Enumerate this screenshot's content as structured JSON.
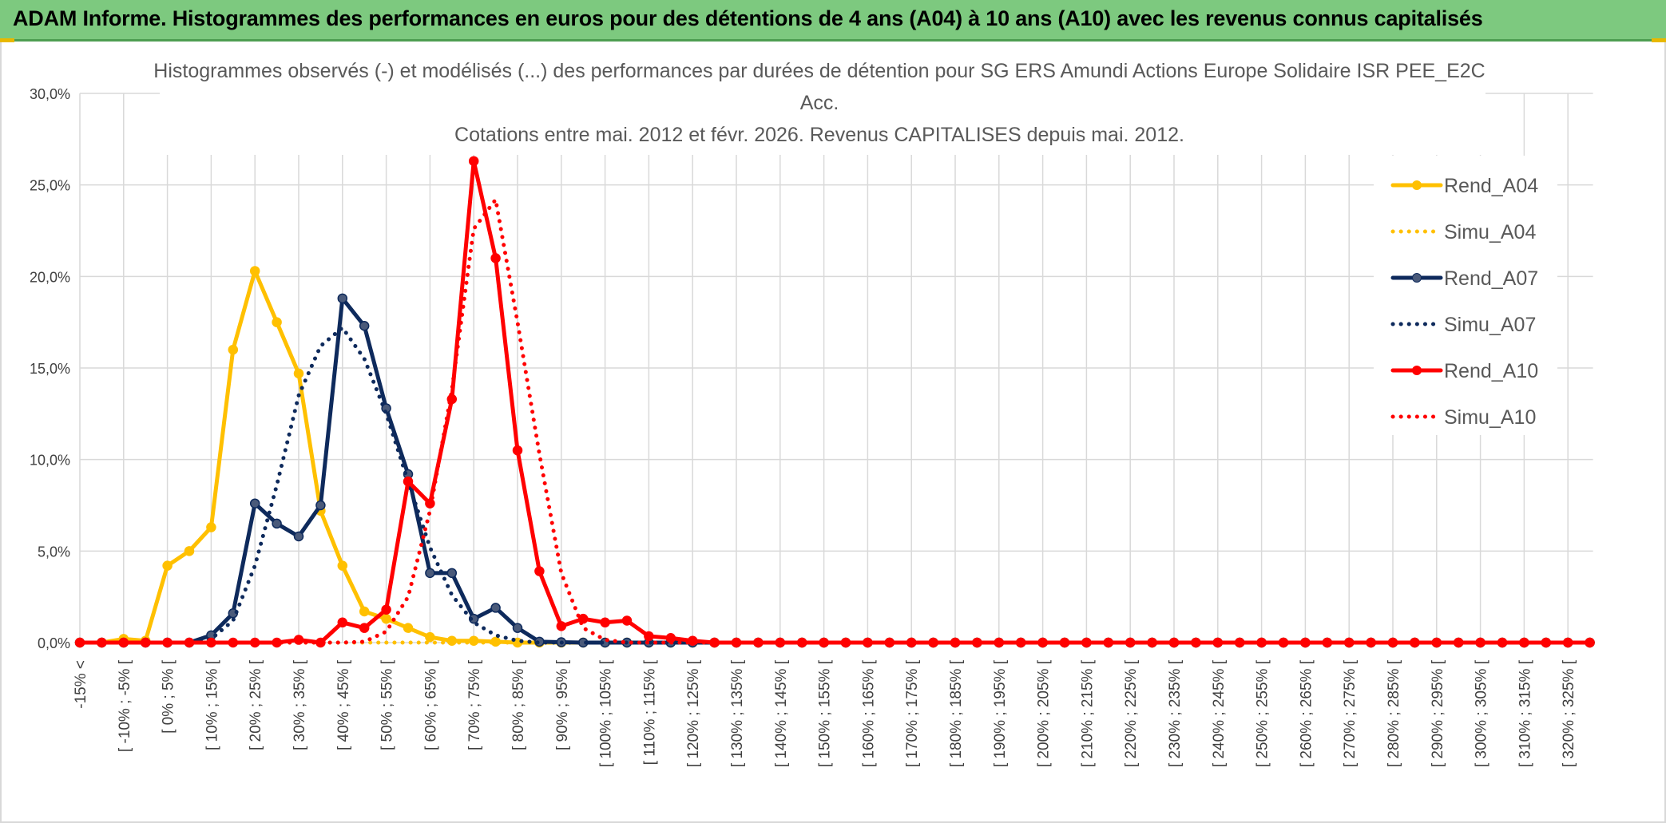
{
  "banner": {
    "title": "ADAM Informe. Histogrammes des performances en euros pour des détentions de 4 ans (A04) à 10 ans (A10) avec les revenus connus capitalisés"
  },
  "colors": {
    "banner_bg": "#7dc97f",
    "a04": "#ffc000",
    "a07": "#0e2a5c",
    "a10": "#ff0000",
    "grid": "#d9d9d9"
  },
  "chart_data": {
    "type": "line",
    "title_lines": [
      "Histogrammes observés (-) et modélisés (...) des performances par durées de détention pour SG ERS Amundi Actions Europe Solidaire ISR PEE_E2C",
      "Acc.",
      "Cotations entre mai. 2012 et févr. 2026. Revenus CAPITALISES depuis mai. 2012."
    ],
    "xlabel": "",
    "ylabel": "",
    "ylim": [
      0,
      30
    ],
    "y_ticks": [
      "0,0%",
      "5,0%",
      "10,0%",
      "15,0%",
      "20,0%",
      "25,0%",
      "30,0%"
    ],
    "grid": true,
    "legend_position": "right",
    "x_tick_labels": [
      "-15% <",
      "[ -10% ; -5% [",
      "[ 0% ; 5% [",
      "[ 10% ; 15% [",
      "[ 20% ; 25% [",
      "[ 30% ; 35% [",
      "[ 40% ; 45% [",
      "[ 50% ; 55% [",
      "[ 60% ; 65% [",
      "[ 70% ; 75% [",
      "[ 80% ; 85% [",
      "[ 90% ; 95% [",
      "[ 100% ; 105% [",
      "[ 110% ; 115% [",
      "[ 120% ; 125% [",
      "[ 130% ; 135% [",
      "[ 140% ; 145% [",
      "[ 150% ; 155% [",
      "[ 160% ; 165% [",
      "[ 170% ; 175% [",
      "[ 180% ; 185% [",
      "[ 190% ; 195% [",
      "[ 200% ; 205% [",
      "[ 210% ; 215% [",
      "[ 220% ; 225% [",
      "[ 230% ; 235% [",
      "[ 240% ; 245% [",
      "[ 250% ; 255% [",
      "[ 260% ; 265% [",
      "[ 270% ; 275% [",
      "[ 280% ; 285% [",
      "[ 290% ; 295% [",
      "[ 300% ; 305% [",
      "[ 310% ; 315% [",
      "[ 320% ; 325% ["
    ],
    "bins": 70,
    "series": [
      {
        "name": "Rend_A04",
        "style": "solid",
        "color": "#ffc000",
        "values": [
          0,
          0,
          0.2,
          0.1,
          4.2,
          5,
          6.3,
          16,
          20.3,
          17.5,
          14.7,
          7.2,
          4.2,
          1.7,
          1.3,
          0.8,
          0.3,
          0.1,
          0.1,
          0.05,
          0
        ]
      },
      {
        "name": "Simu_A04",
        "style": "dotted",
        "color": "#ffc000",
        "values": [
          0,
          0,
          0,
          0,
          0,
          0,
          0,
          0,
          0,
          0,
          0,
          0,
          0,
          0,
          0,
          0,
          0,
          0,
          0,
          0,
          0
        ]
      },
      {
        "name": "Rend_A07",
        "style": "solid",
        "color": "#0e2a5c",
        "values": [
          0,
          0,
          0,
          0,
          0,
          0,
          0.4,
          1.6,
          7.6,
          6.5,
          5.8,
          7.5,
          18.8,
          17.3,
          12.8,
          9.2,
          3.8,
          3.8,
          1.3,
          1.9,
          0.8,
          0.05,
          0.02,
          0,
          0,
          0,
          0,
          0,
          0,
          0
        ]
      },
      {
        "name": "Simu_A07",
        "style": "dotted",
        "color": "#0e2a5c",
        "values": [
          0,
          0,
          0,
          0,
          0,
          0,
          0.2,
          1.2,
          4.2,
          8.6,
          13.5,
          16.2,
          17.2,
          15.5,
          12.5,
          8.8,
          5.2,
          2.6,
          1.1,
          0.4,
          0.1,
          0,
          0,
          0,
          0,
          0,
          0,
          0,
          0,
          0
        ]
      },
      {
        "name": "Rend_A10",
        "style": "solid",
        "color": "#ff0000",
        "values": [
          0,
          0,
          0,
          0,
          0,
          0,
          0,
          0,
          0,
          0,
          0.15,
          0,
          1.1,
          0.8,
          1.8,
          8.8,
          7.6,
          13.3,
          26.3,
          21,
          10.5,
          3.9,
          0.9,
          1.3,
          1.1,
          1.2,
          0.35,
          0.25,
          0.1,
          0,
          0,
          0,
          0,
          0,
          0,
          0,
          0,
          0,
          0,
          0,
          0,
          0,
          0,
          0,
          0,
          0,
          0,
          0,
          0,
          0,
          0,
          0,
          0,
          0,
          0,
          0,
          0,
          0,
          0,
          0,
          0,
          0,
          0,
          0,
          0,
          0,
          0,
          0,
          0,
          0
        ]
      },
      {
        "name": "Simu_A10",
        "style": "dotted",
        "color": "#ff0000",
        "values": [
          0,
          0,
          0,
          0,
          0,
          0,
          0,
          0,
          0,
          0,
          0,
          0,
          0,
          0.05,
          0.6,
          2.5,
          7.2,
          13.8,
          22.6,
          24.2,
          17.5,
          10.3,
          3.8,
          0.8,
          0.15,
          0,
          0,
          0,
          0,
          0
        ]
      }
    ]
  }
}
